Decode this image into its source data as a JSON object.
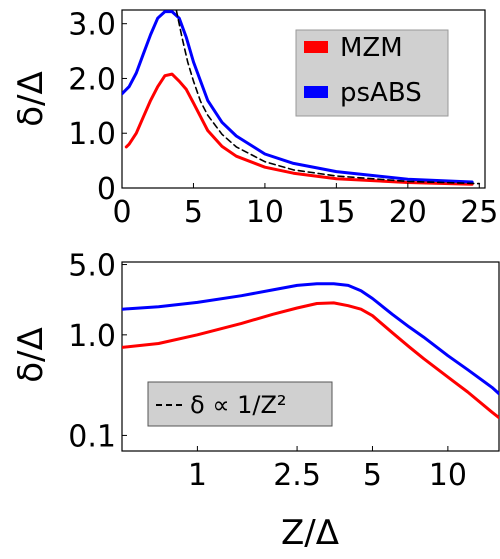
{
  "chart_data": [
    {
      "type": "scatter",
      "xlabel": "",
      "ylabel": "δ/Δ",
      "xlim": [
        0,
        25.4
      ],
      "ylim": [
        0,
        3.25
      ],
      "x_ticks": [
        {
          "value": 0,
          "label": "0"
        },
        {
          "value": 5,
          "label": "5"
        },
        {
          "value": 10,
          "label": "10"
        },
        {
          "value": 15,
          "label": "15"
        },
        {
          "value": 20,
          "label": "20"
        },
        {
          "value": 25,
          "label": "25"
        }
      ],
      "y_ticks": [
        {
          "value": 0,
          "label": "0"
        },
        {
          "value": 1,
          "label": "1.0"
        },
        {
          "value": 2,
          "label": "2.0"
        },
        {
          "value": 3,
          "label": "3.0"
        }
      ],
      "legend": {
        "position": "top-right",
        "entries": [
          {
            "name": "MZM",
            "color": "#ff0000"
          },
          {
            "name": "psABS",
            "color": "#0000ff"
          }
        ]
      },
      "series": [
        {
          "name": "MZM",
          "color": "#ff0000",
          "x": [
            0.3,
            0.5,
            1,
            1.5,
            2,
            2.5,
            3,
            3.5,
            4,
            4.5,
            5,
            6,
            7,
            8,
            10,
            12,
            15,
            20,
            24.5
          ],
          "y": [
            0.75,
            0.8,
            1.0,
            1.3,
            1.6,
            1.85,
            2.05,
            2.08,
            1.95,
            1.8,
            1.55,
            1.05,
            0.76,
            0.58,
            0.38,
            0.27,
            0.17,
            0.1,
            0.07
          ]
        },
        {
          "name": "psABS",
          "color": "#0000ff",
          "x": [
            0,
            0.5,
            1,
            1.5,
            2,
            2.5,
            3,
            3.5,
            4,
            4.5,
            5,
            6,
            7,
            8,
            10,
            12,
            15,
            20,
            24.5
          ],
          "y": [
            1.72,
            1.85,
            2.1,
            2.45,
            2.8,
            3.1,
            3.22,
            3.22,
            3.1,
            2.75,
            2.3,
            1.6,
            1.2,
            0.95,
            0.62,
            0.45,
            0.3,
            0.16,
            0.11
          ]
        },
        {
          "name": "",
          "color": "#000000",
          "style": "dashed",
          "x": [
            3.8,
            4.2,
            4.6,
            5,
            5.5,
            6,
            7,
            8,
            10,
            12,
            15,
            20,
            25
          ],
          "y": [
            3.25,
            2.75,
            2.3,
            1.95,
            1.58,
            1.33,
            0.98,
            0.75,
            0.48,
            0.33,
            0.22,
            0.12,
            0.08
          ]
        }
      ]
    },
    {
      "type": "scatter",
      "xlabel": "Z/Δ",
      "ylabel": "δ/Δ",
      "xscale": "log",
      "yscale": "log",
      "xlim": [
        0.5,
        16
      ],
      "ylim": [
        0.07,
        5.3
      ],
      "x_ticks": [
        {
          "value": 1,
          "label": "1"
        },
        {
          "value": 2.5,
          "label": "2.5"
        },
        {
          "value": 5,
          "label": "5"
        },
        {
          "value": 10,
          "label": "10"
        }
      ],
      "y_ticks": [
        {
          "value": 0.1,
          "label": "0.1"
        },
        {
          "value": 1,
          "label": "1.0"
        },
        {
          "value": 5,
          "label": "5.0"
        }
      ],
      "legend": {
        "position": "lower-left",
        "entries": [
          {
            "name": "δ ∝ 1/Z²",
            "color": "#000000",
            "style": "dashed"
          }
        ]
      },
      "series": [
        {
          "name": "MZM",
          "color": "#ff0000",
          "x": [
            0.5,
            0.7,
            1,
            1.5,
            2,
            2.5,
            3,
            3.5,
            4,
            4.5,
            5,
            6,
            7,
            8,
            10,
            12,
            15,
            16
          ],
          "y": [
            0.75,
            0.82,
            1.0,
            1.3,
            1.6,
            1.85,
            2.05,
            2.08,
            1.95,
            1.8,
            1.55,
            1.05,
            0.76,
            0.58,
            0.38,
            0.27,
            0.17,
            0.15
          ]
        },
        {
          "name": "psABS",
          "color": "#0000ff",
          "x": [
            0.5,
            0.7,
            1,
            1.5,
            2,
            2.5,
            3,
            3.5,
            4,
            4.5,
            5,
            6,
            7,
            8,
            10,
            12,
            15,
            16
          ],
          "y": [
            1.8,
            1.9,
            2.1,
            2.45,
            2.8,
            3.1,
            3.22,
            3.22,
            3.1,
            2.75,
            2.3,
            1.6,
            1.2,
            0.95,
            0.62,
            0.45,
            0.3,
            0.26
          ]
        }
      ]
    }
  ]
}
